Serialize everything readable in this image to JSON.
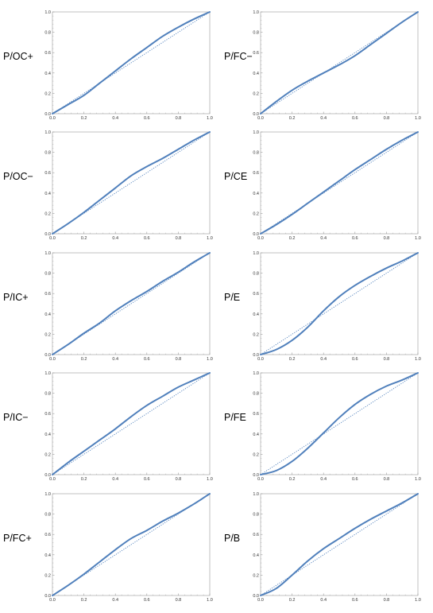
{
  "colors": {
    "curve": "#5080BC",
    "reference": "#5080BC",
    "axis": "#9a9a9a"
  },
  "chart_data": [
    {
      "type": "line",
      "title": "P/OC+",
      "xlim": [
        0,
        1
      ],
      "ylim": [
        0,
        1
      ],
      "x_ticks": [
        "0.0",
        "0.2",
        "0.4",
        "0.6",
        "0.8",
        "1.0"
      ],
      "y_ticks": [
        "0.0",
        "0.2",
        "0.4",
        "0.6",
        "0.8",
        "1.0"
      ],
      "series": [
        {
          "style": "solid",
          "x": [
            0,
            0.1,
            0.2,
            0.3,
            0.4,
            0.5,
            0.6,
            0.7,
            0.8,
            0.9,
            1.0
          ],
          "y": [
            0,
            0.09,
            0.18,
            0.3,
            0.42,
            0.54,
            0.65,
            0.76,
            0.85,
            0.93,
            1.0
          ]
        },
        {
          "style": "dotted",
          "x": [
            0,
            1
          ],
          "y": [
            0,
            1
          ]
        }
      ]
    },
    {
      "type": "line",
      "title": "P/FC−",
      "xlim": [
        0,
        1
      ],
      "ylim": [
        0,
        1
      ],
      "x_ticks": [
        "0.0",
        "0.2",
        "0.4",
        "0.6",
        "0.8",
        "1.0"
      ],
      "y_ticks": [
        "0.0",
        "0.2",
        "0.4",
        "0.6",
        "0.8",
        "1.0"
      ],
      "series": [
        {
          "style": "solid",
          "x": [
            0,
            0.1,
            0.2,
            0.3,
            0.4,
            0.5,
            0.6,
            0.7,
            0.8,
            0.9,
            1.0
          ],
          "y": [
            0,
            0.12,
            0.23,
            0.32,
            0.4,
            0.48,
            0.57,
            0.68,
            0.79,
            0.9,
            1.0
          ]
        },
        {
          "style": "dotted",
          "x": [
            0,
            1
          ],
          "y": [
            0,
            1
          ]
        }
      ]
    },
    {
      "type": "line",
      "title": "P/OC−",
      "xlim": [
        0,
        1
      ],
      "ylim": [
        0,
        1
      ],
      "x_ticks": [
        "0.0",
        "0.2",
        "0.4",
        "0.6",
        "0.8",
        "1.0"
      ],
      "y_ticks": [
        "0.0",
        "0.2",
        "0.4",
        "0.6",
        "0.8",
        "1.0"
      ],
      "series": [
        {
          "style": "solid",
          "x": [
            0,
            0.1,
            0.2,
            0.3,
            0.4,
            0.5,
            0.6,
            0.7,
            0.8,
            0.9,
            1.0
          ],
          "y": [
            0,
            0.1,
            0.21,
            0.33,
            0.45,
            0.57,
            0.66,
            0.74,
            0.83,
            0.92,
            1.0
          ]
        },
        {
          "style": "dotted",
          "x": [
            0,
            1
          ],
          "y": [
            0,
            1
          ]
        }
      ]
    },
    {
      "type": "line",
      "title": "P/CE",
      "xlim": [
        0,
        1
      ],
      "ylim": [
        0,
        1
      ],
      "x_ticks": [
        "0.0",
        "0.2",
        "0.4",
        "0.6",
        "0.8",
        "1.0"
      ],
      "y_ticks": [
        "0.0",
        "0.2",
        "0.4",
        "0.6",
        "0.8",
        "1.0"
      ],
      "series": [
        {
          "style": "solid",
          "x": [
            0,
            0.1,
            0.2,
            0.3,
            0.4,
            0.5,
            0.6,
            0.7,
            0.8,
            0.9,
            1.0
          ],
          "y": [
            0,
            0.09,
            0.19,
            0.3,
            0.41,
            0.52,
            0.63,
            0.73,
            0.83,
            0.92,
            1.0
          ]
        },
        {
          "style": "dotted",
          "x": [
            0,
            1
          ],
          "y": [
            0,
            1
          ]
        }
      ]
    },
    {
      "type": "line",
      "title": "P/IC+",
      "xlim": [
        0,
        1
      ],
      "ylim": [
        0,
        1
      ],
      "x_ticks": [
        "0.0",
        "0.2",
        "0.4",
        "0.6",
        "0.8",
        "1.0"
      ],
      "y_ticks": [
        "0.0",
        "0.2",
        "0.4",
        "0.6",
        "0.8",
        "1.0"
      ],
      "series": [
        {
          "style": "solid",
          "x": [
            0,
            0.1,
            0.2,
            0.3,
            0.4,
            0.5,
            0.6,
            0.7,
            0.8,
            0.9,
            1.0
          ],
          "y": [
            0,
            0.1,
            0.21,
            0.31,
            0.43,
            0.53,
            0.62,
            0.72,
            0.81,
            0.91,
            1.0
          ]
        },
        {
          "style": "dotted",
          "x": [
            0,
            1
          ],
          "y": [
            0,
            1
          ]
        }
      ]
    },
    {
      "type": "line",
      "title": "P/E",
      "xlim": [
        0,
        1
      ],
      "ylim": [
        0,
        1
      ],
      "x_ticks": [
        "0.0",
        "0.2",
        "0.4",
        "0.6",
        "0.8",
        "1.0"
      ],
      "y_ticks": [
        "0.0",
        "0.2",
        "0.4",
        "0.6",
        "0.8",
        "1.0"
      ],
      "series": [
        {
          "style": "solid",
          "x": [
            0,
            0.1,
            0.2,
            0.3,
            0.4,
            0.5,
            0.6,
            0.7,
            0.8,
            0.9,
            1.0
          ],
          "y": [
            0,
            0.05,
            0.14,
            0.27,
            0.43,
            0.57,
            0.68,
            0.77,
            0.85,
            0.92,
            1.0
          ]
        },
        {
          "style": "dotted",
          "x": [
            0,
            1
          ],
          "y": [
            0,
            1
          ]
        }
      ]
    },
    {
      "type": "line",
      "title": "P/IC−",
      "xlim": [
        0,
        1
      ],
      "ylim": [
        0,
        1
      ],
      "x_ticks": [
        "0.0",
        "0.2",
        "0.4",
        "0.6",
        "0.8",
        "1.0"
      ],
      "y_ticks": [
        "0.0",
        "0.2",
        "0.4",
        "0.6",
        "0.8",
        "1.0"
      ],
      "series": [
        {
          "style": "solid",
          "x": [
            0,
            0.1,
            0.2,
            0.3,
            0.4,
            0.5,
            0.6,
            0.7,
            0.8,
            0.9,
            1.0
          ],
          "y": [
            0,
            0.12,
            0.23,
            0.34,
            0.45,
            0.57,
            0.68,
            0.77,
            0.86,
            0.93,
            1.0
          ]
        },
        {
          "style": "dotted",
          "x": [
            0,
            1
          ],
          "y": [
            0,
            1
          ]
        }
      ]
    },
    {
      "type": "line",
      "title": "P/FE",
      "xlim": [
        0,
        1
      ],
      "ylim": [
        0,
        1
      ],
      "x_ticks": [
        "0.0",
        "0.2",
        "0.4",
        "0.6",
        "0.8",
        "1.0"
      ],
      "y_ticks": [
        "0.0",
        "0.2",
        "0.4",
        "0.6",
        "0.8",
        "1.0"
      ],
      "series": [
        {
          "style": "solid",
          "x": [
            0,
            0.1,
            0.2,
            0.3,
            0.4,
            0.5,
            0.6,
            0.7,
            0.8,
            0.9,
            1.0
          ],
          "y": [
            0,
            0.04,
            0.13,
            0.26,
            0.41,
            0.56,
            0.69,
            0.79,
            0.87,
            0.93,
            1.0
          ]
        },
        {
          "style": "dotted",
          "x": [
            0,
            1
          ],
          "y": [
            0,
            1
          ]
        }
      ]
    },
    {
      "type": "line",
      "title": "P/FC+",
      "xlim": [
        0,
        1
      ],
      "ylim": [
        0,
        1
      ],
      "x_ticks": [
        "0.0",
        "0.2",
        "0.4",
        "0.6",
        "0.8",
        "1.0"
      ],
      "y_ticks": [
        "0.0",
        "0.2",
        "0.4",
        "0.6",
        "0.8",
        "1.0"
      ],
      "series": [
        {
          "style": "solid",
          "x": [
            0,
            0.1,
            0.2,
            0.3,
            0.4,
            0.5,
            0.6,
            0.7,
            0.8,
            0.9,
            1.0
          ],
          "y": [
            0,
            0.1,
            0.21,
            0.33,
            0.45,
            0.56,
            0.64,
            0.73,
            0.81,
            0.9,
            1.0
          ]
        },
        {
          "style": "dotted",
          "x": [
            0,
            1
          ],
          "y": [
            0,
            1
          ]
        }
      ]
    },
    {
      "type": "line",
      "title": "P/B",
      "xlim": [
        0,
        1
      ],
      "ylim": [
        0,
        1
      ],
      "x_ticks": [
        "0.0",
        "0.2",
        "0.4",
        "0.6",
        "0.8",
        "1.0"
      ],
      "y_ticks": [
        "0.0",
        "0.2",
        "0.4",
        "0.6",
        "0.8",
        "1.0"
      ],
      "series": [
        {
          "style": "solid",
          "x": [
            0,
            0.1,
            0.2,
            0.3,
            0.4,
            0.5,
            0.6,
            0.7,
            0.8,
            0.9,
            1.0
          ],
          "y": [
            0,
            0.07,
            0.2,
            0.34,
            0.46,
            0.56,
            0.66,
            0.75,
            0.83,
            0.91,
            1.0
          ]
        },
        {
          "style": "dotted",
          "x": [
            0,
            1
          ],
          "y": [
            0,
            1
          ]
        }
      ]
    }
  ]
}
